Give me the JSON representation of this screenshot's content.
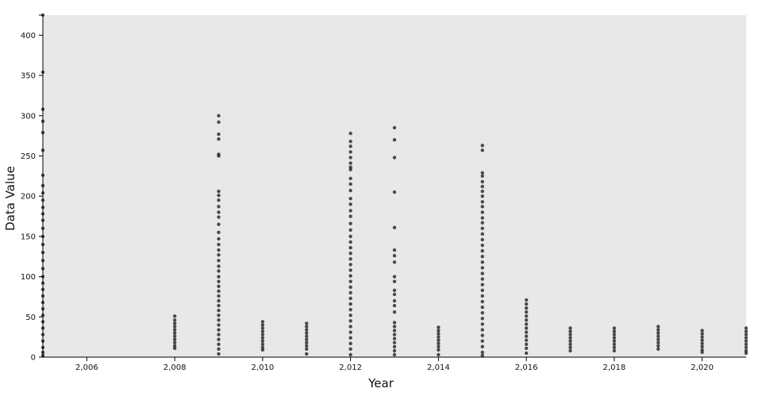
{
  "chart_data": {
    "type": "scatter",
    "title": "",
    "xlabel": "Year",
    "ylabel": "Data Value",
    "xlim": [
      2005,
      2021
    ],
    "ylim": [
      0,
      425
    ],
    "x_ticks": [
      2006,
      2008,
      2010,
      2012,
      2014,
      2016,
      2018,
      2020
    ],
    "x_tick_labels": [
      "2,006",
      "2,008",
      "2,010",
      "2,012",
      "2,014",
      "2,016",
      "2,018",
      "2,020"
    ],
    "y_ticks": [
      0,
      50,
      100,
      150,
      200,
      250,
      300,
      350,
      400
    ],
    "y_tick_labels": [
      "0",
      "50",
      "100",
      "150",
      "200",
      "250",
      "300",
      "350",
      "400"
    ],
    "grid": false,
    "legend": "none",
    "colors": {
      "point": "#222222",
      "plot_bg": "#e8e8e8",
      "axis": "#000000"
    },
    "points": [
      [
        2005,
        425
      ],
      [
        2005,
        354
      ],
      [
        2005,
        308
      ],
      [
        2005,
        293
      ],
      [
        2005,
        279
      ],
      [
        2005,
        257
      ],
      [
        2005,
        226
      ],
      [
        2005,
        213
      ],
      [
        2005,
        204
      ],
      [
        2005,
        195
      ],
      [
        2005,
        186
      ],
      [
        2005,
        178
      ],
      [
        2005,
        170
      ],
      [
        2005,
        160
      ],
      [
        2005,
        150
      ],
      [
        2005,
        140
      ],
      [
        2005,
        130
      ],
      [
        2005,
        120
      ],
      [
        2005,
        110
      ],
      [
        2005,
        100
      ],
      [
        2005,
        92
      ],
      [
        2005,
        84
      ],
      [
        2005,
        76
      ],
      [
        2005,
        68
      ],
      [
        2005,
        60
      ],
      [
        2005,
        52
      ],
      [
        2005,
        44
      ],
      [
        2005,
        36
      ],
      [
        2005,
        28
      ],
      [
        2005,
        20
      ],
      [
        2005,
        12
      ],
      [
        2005,
        6
      ],
      [
        2005,
        2
      ],
      [
        2008,
        51
      ],
      [
        2008,
        46
      ],
      [
        2008,
        42
      ],
      [
        2008,
        38
      ],
      [
        2008,
        34
      ],
      [
        2008,
        30
      ],
      [
        2008,
        26
      ],
      [
        2008,
        22
      ],
      [
        2008,
        18
      ],
      [
        2008,
        14
      ],
      [
        2008,
        11
      ],
      [
        2009,
        300
      ],
      [
        2009,
        292
      ],
      [
        2009,
        277
      ],
      [
        2009,
        271
      ],
      [
        2009,
        252
      ],
      [
        2009,
        250
      ],
      [
        2009,
        206
      ],
      [
        2009,
        201
      ],
      [
        2009,
        195
      ],
      [
        2009,
        187
      ],
      [
        2009,
        180
      ],
      [
        2009,
        174
      ],
      [
        2009,
        165
      ],
      [
        2009,
        155
      ],
      [
        2009,
        147
      ],
      [
        2009,
        140
      ],
      [
        2009,
        133
      ],
      [
        2009,
        127
      ],
      [
        2009,
        120
      ],
      [
        2009,
        113
      ],
      [
        2009,
        107
      ],
      [
        2009,
        100
      ],
      [
        2009,
        94
      ],
      [
        2009,
        88
      ],
      [
        2009,
        82
      ],
      [
        2009,
        76
      ],
      [
        2009,
        70
      ],
      [
        2009,
        64
      ],
      [
        2009,
        58
      ],
      [
        2009,
        52
      ],
      [
        2009,
        46
      ],
      [
        2009,
        40
      ],
      [
        2009,
        34
      ],
      [
        2009,
        28
      ],
      [
        2009,
        22
      ],
      [
        2009,
        16
      ],
      [
        2009,
        10
      ],
      [
        2009,
        4
      ],
      [
        2010,
        44
      ],
      [
        2010,
        40
      ],
      [
        2010,
        36
      ],
      [
        2010,
        32
      ],
      [
        2010,
        28
      ],
      [
        2010,
        24
      ],
      [
        2010,
        20
      ],
      [
        2010,
        16
      ],
      [
        2010,
        12
      ],
      [
        2010,
        9
      ],
      [
        2011,
        42
      ],
      [
        2011,
        38
      ],
      [
        2011,
        34
      ],
      [
        2011,
        30
      ],
      [
        2011,
        26
      ],
      [
        2011,
        22
      ],
      [
        2011,
        18
      ],
      [
        2011,
        14
      ],
      [
        2011,
        10
      ],
      [
        2011,
        4
      ],
      [
        2012,
        278
      ],
      [
        2012,
        268
      ],
      [
        2012,
        262
      ],
      [
        2012,
        255
      ],
      [
        2012,
        248
      ],
      [
        2012,
        241
      ],
      [
        2012,
        236
      ],
      [
        2012,
        233
      ],
      [
        2012,
        222
      ],
      [
        2012,
        215
      ],
      [
        2012,
        207
      ],
      [
        2012,
        197
      ],
      [
        2012,
        190
      ],
      [
        2012,
        182
      ],
      [
        2012,
        175
      ],
      [
        2012,
        166
      ],
      [
        2012,
        158
      ],
      [
        2012,
        150
      ],
      [
        2012,
        143
      ],
      [
        2012,
        136
      ],
      [
        2012,
        129
      ],
      [
        2012,
        122
      ],
      [
        2012,
        115
      ],
      [
        2012,
        108
      ],
      [
        2012,
        101
      ],
      [
        2012,
        94
      ],
      [
        2012,
        87
      ],
      [
        2012,
        80
      ],
      [
        2012,
        73
      ],
      [
        2012,
        66
      ],
      [
        2012,
        59
      ],
      [
        2012,
        52
      ],
      [
        2012,
        45
      ],
      [
        2012,
        38
      ],
      [
        2012,
        31
      ],
      [
        2012,
        24
      ],
      [
        2012,
        17
      ],
      [
        2012,
        10
      ],
      [
        2012,
        3
      ],
      [
        2013,
        285
      ],
      [
        2013,
        270
      ],
      [
        2013,
        248
      ],
      [
        2013,
        205
      ],
      [
        2013,
        161
      ],
      [
        2013,
        133
      ],
      [
        2013,
        126
      ],
      [
        2013,
        118
      ],
      [
        2013,
        100
      ],
      [
        2013,
        94
      ],
      [
        2013,
        83
      ],
      [
        2013,
        78
      ],
      [
        2013,
        70
      ],
      [
        2013,
        64
      ],
      [
        2013,
        56
      ],
      [
        2013,
        43
      ],
      [
        2013,
        38
      ],
      [
        2013,
        33
      ],
      [
        2013,
        28
      ],
      [
        2013,
        23
      ],
      [
        2013,
        18
      ],
      [
        2013,
        13
      ],
      [
        2013,
        8
      ],
      [
        2013,
        3
      ],
      [
        2014,
        37
      ],
      [
        2014,
        33
      ],
      [
        2014,
        29
      ],
      [
        2014,
        25
      ],
      [
        2014,
        21
      ],
      [
        2014,
        17
      ],
      [
        2014,
        13
      ],
      [
        2014,
        9
      ],
      [
        2014,
        3
      ],
      [
        2015,
        263
      ],
      [
        2015,
        257
      ],
      [
        2015,
        229
      ],
      [
        2015,
        225
      ],
      [
        2015,
        218
      ],
      [
        2015,
        212
      ],
      [
        2015,
        206
      ],
      [
        2015,
        200
      ],
      [
        2015,
        193
      ],
      [
        2015,
        187
      ],
      [
        2015,
        180
      ],
      [
        2015,
        173
      ],
      [
        2015,
        167
      ],
      [
        2015,
        160
      ],
      [
        2015,
        153
      ],
      [
        2015,
        146
      ],
      [
        2015,
        139
      ],
      [
        2015,
        132
      ],
      [
        2015,
        125
      ],
      [
        2015,
        118
      ],
      [
        2015,
        111
      ],
      [
        2015,
        104
      ],
      [
        2015,
        97
      ],
      [
        2015,
        90
      ],
      [
        2015,
        83
      ],
      [
        2015,
        76
      ],
      [
        2015,
        69
      ],
      [
        2015,
        62
      ],
      [
        2015,
        55
      ],
      [
        2015,
        48
      ],
      [
        2015,
        41
      ],
      [
        2015,
        34
      ],
      [
        2015,
        27
      ],
      [
        2015,
        20
      ],
      [
        2015,
        13
      ],
      [
        2015,
        6
      ],
      [
        2015,
        2
      ],
      [
        2016,
        71
      ],
      [
        2016,
        66
      ],
      [
        2016,
        61
      ],
      [
        2016,
        56
      ],
      [
        2016,
        51
      ],
      [
        2016,
        46
      ],
      [
        2016,
        41
      ],
      [
        2016,
        36
      ],
      [
        2016,
        31
      ],
      [
        2016,
        26
      ],
      [
        2016,
        21
      ],
      [
        2016,
        16
      ],
      [
        2016,
        11
      ],
      [
        2016,
        5
      ],
      [
        2017,
        36
      ],
      [
        2017,
        32
      ],
      [
        2017,
        28
      ],
      [
        2017,
        24
      ],
      [
        2017,
        20
      ],
      [
        2017,
        16
      ],
      [
        2017,
        12
      ],
      [
        2017,
        8
      ],
      [
        2018,
        36
      ],
      [
        2018,
        32
      ],
      [
        2018,
        28
      ],
      [
        2018,
        24
      ],
      [
        2018,
        20
      ],
      [
        2018,
        16
      ],
      [
        2018,
        12
      ],
      [
        2018,
        8
      ],
      [
        2019,
        38
      ],
      [
        2019,
        34
      ],
      [
        2019,
        30
      ],
      [
        2019,
        26
      ],
      [
        2019,
        22
      ],
      [
        2019,
        18
      ],
      [
        2019,
        14
      ],
      [
        2019,
        10
      ],
      [
        2020,
        33
      ],
      [
        2020,
        29
      ],
      [
        2020,
        25
      ],
      [
        2020,
        21
      ],
      [
        2020,
        17
      ],
      [
        2020,
        13
      ],
      [
        2020,
        9
      ],
      [
        2020,
        6
      ],
      [
        2021,
        36
      ],
      [
        2021,
        32
      ],
      [
        2021,
        28
      ],
      [
        2021,
        24
      ],
      [
        2021,
        20
      ],
      [
        2021,
        16
      ],
      [
        2021,
        12
      ],
      [
        2021,
        8
      ],
      [
        2021,
        5
      ]
    ]
  }
}
